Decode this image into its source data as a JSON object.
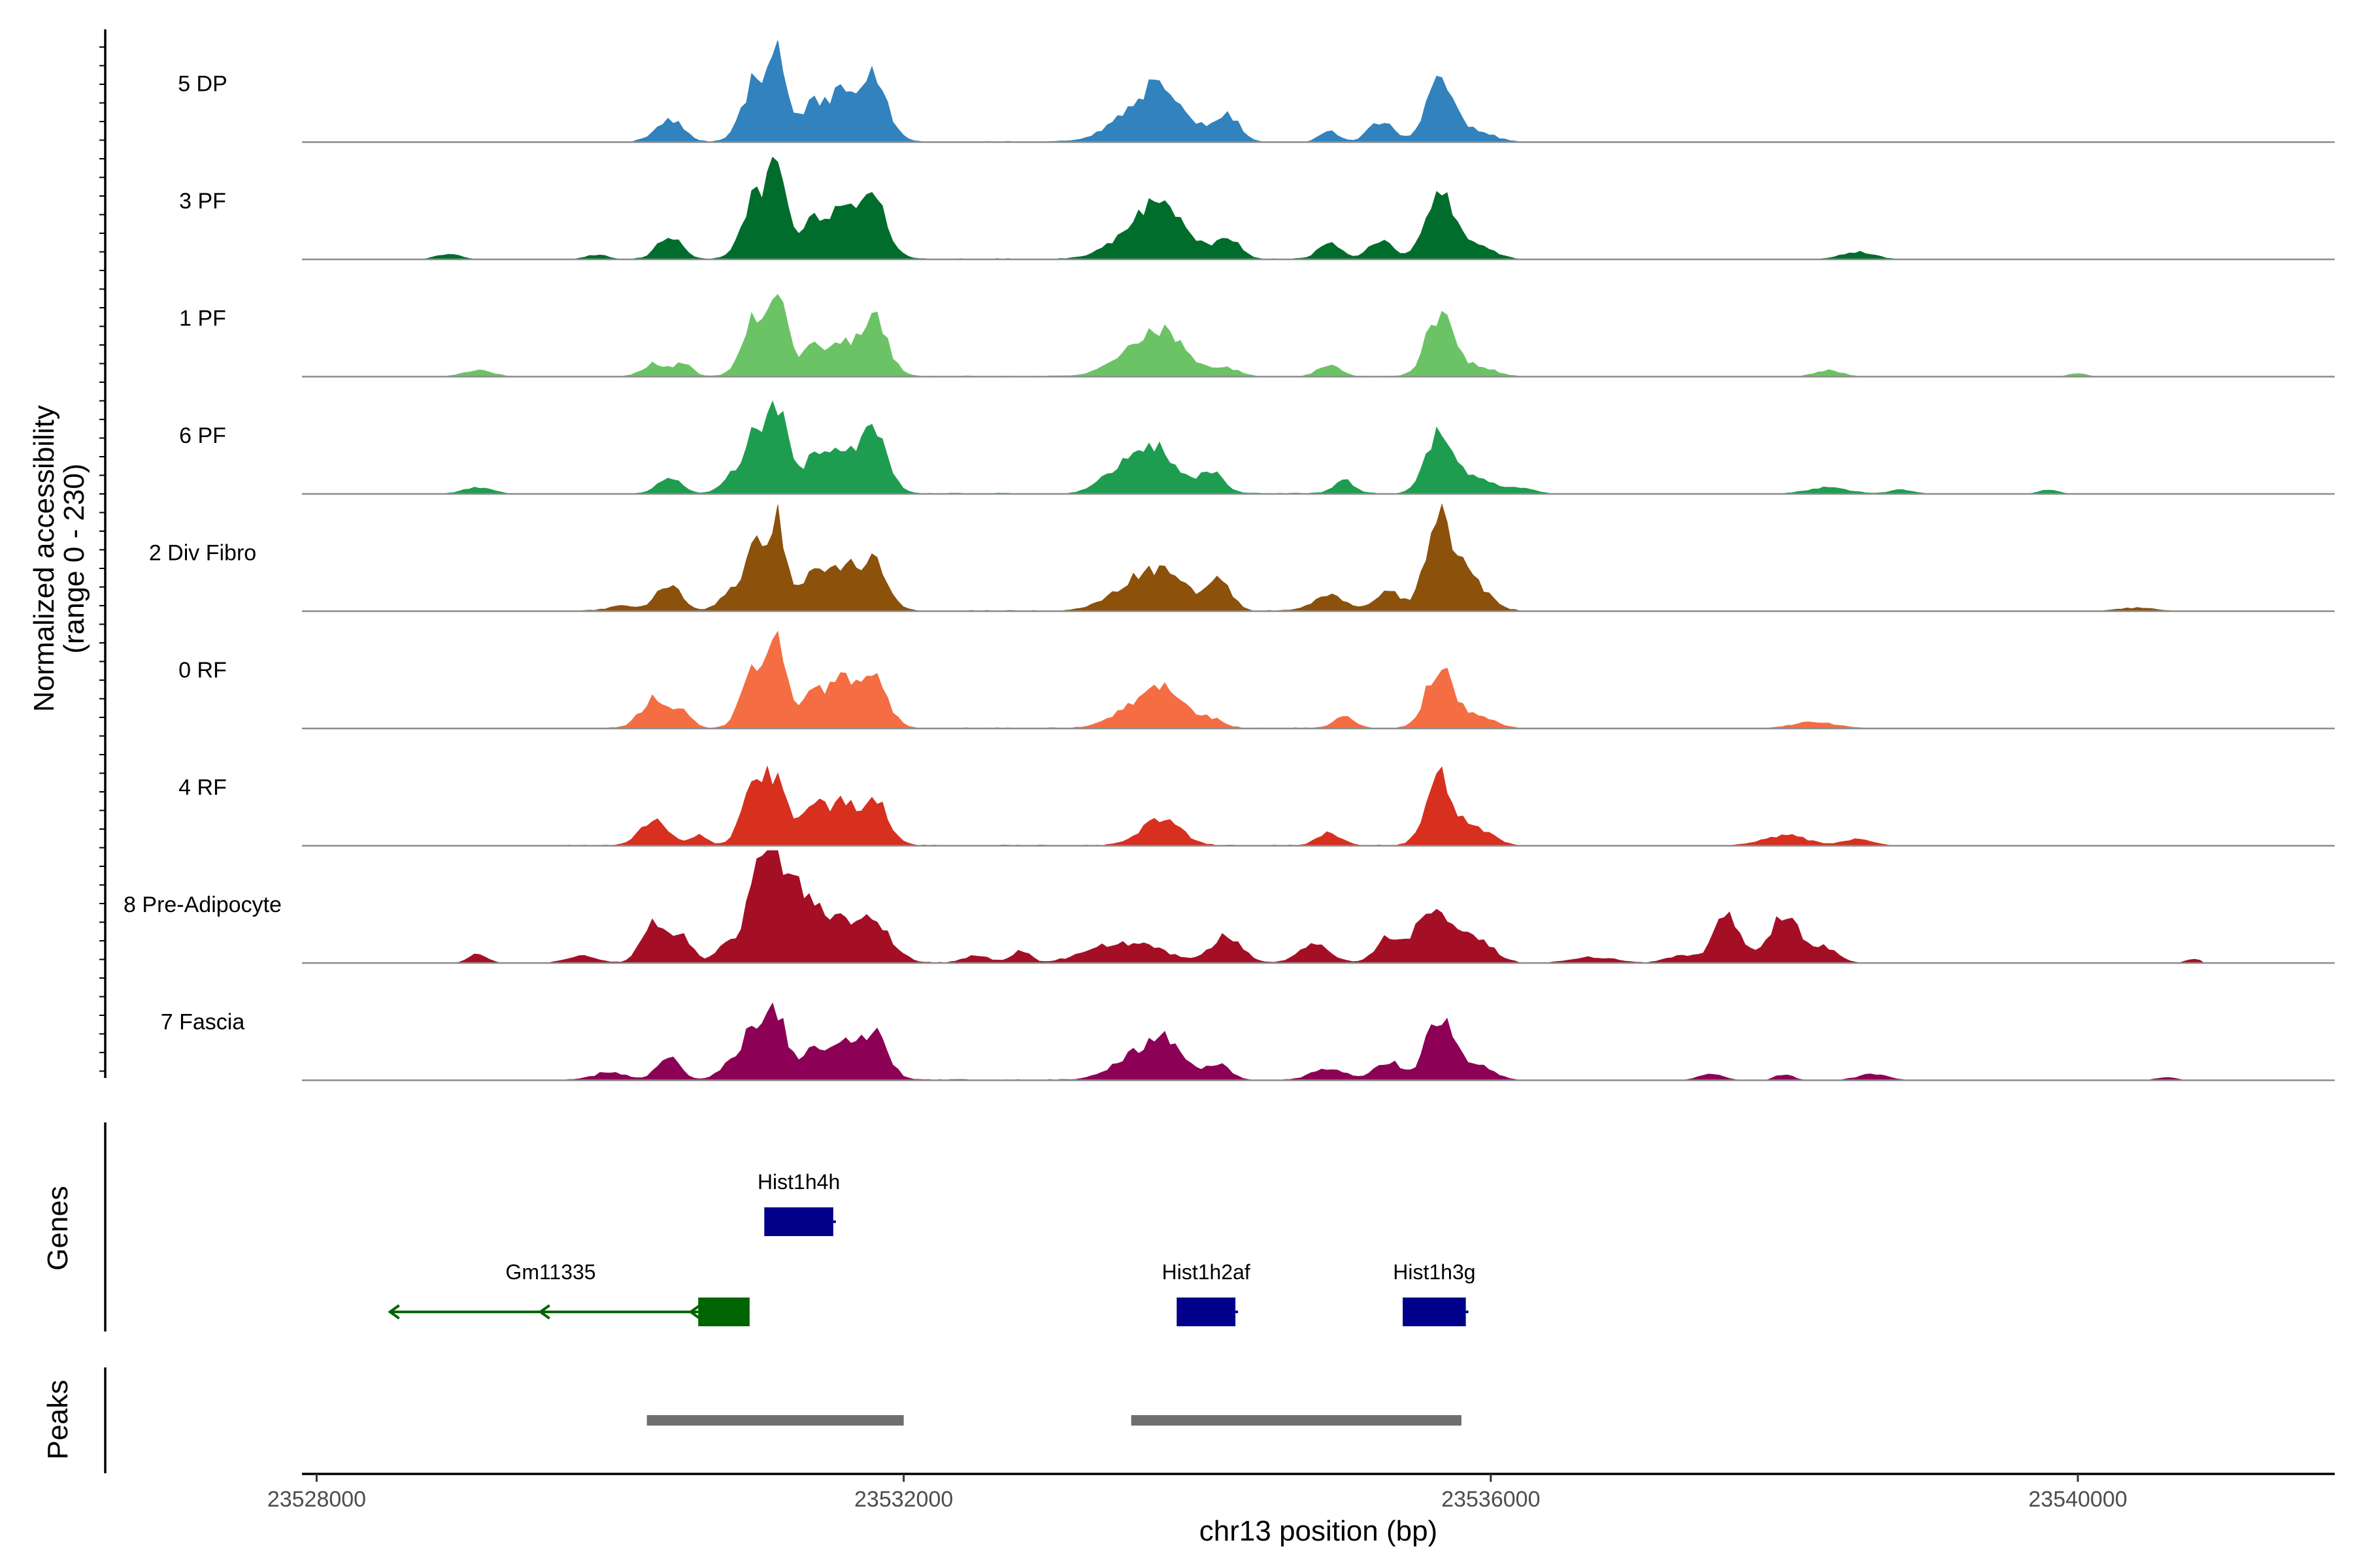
{
  "chart_data": {
    "type": "area",
    "title": "",
    "chromosome": "chr13",
    "xlabel": "chr13 position (bp)",
    "ylabel_line1": "Normalized accessibility",
    "ylabel_line2": "(range 0 - 230)",
    "y_range": [
      0,
      230
    ],
    "x_range": [
      23527900,
      23541750
    ],
    "x_ticks": [
      23528000,
      23532000,
      23536000,
      23540000
    ],
    "x_tick_labels": [
      "23528000",
      "23532000",
      "23536000",
      "23540000"
    ],
    "tracks": [
      {
        "name": "5 DP",
        "color": "#3182BD",
        "scale": 0.9,
        "peaks": [
          [
            23530400,
            0.22,
            90
          ],
          [
            23531000,
            0.62,
            90
          ],
          [
            23531150,
            0.72,
            60
          ],
          [
            23531400,
            0.38,
            100
          ],
          [
            23531600,
            0.42,
            80
          ],
          [
            23531800,
            0.62,
            90
          ],
          [
            23533600,
            0.28,
            180
          ],
          [
            23533800,
            0.38,
            150
          ],
          [
            23534200,
            0.28,
            80
          ],
          [
            23534900,
            0.1,
            60
          ],
          [
            23535250,
            0.2,
            80
          ],
          [
            23535650,
            0.62,
            90
          ],
          [
            23535900,
            0.1,
            110
          ]
        ]
      },
      {
        "name": "3 PF",
        "color": "#006D2C",
        "scale": 0.92,
        "peaks": [
          [
            23528900,
            0.05,
            80
          ],
          [
            23529900,
            0.04,
            70
          ],
          [
            23530400,
            0.22,
            80
          ],
          [
            23531000,
            0.62,
            90
          ],
          [
            23531150,
            0.72,
            60
          ],
          [
            23531400,
            0.38,
            100
          ],
          [
            23531600,
            0.4,
            80
          ],
          [
            23531800,
            0.55,
            90
          ],
          [
            23533600,
            0.26,
            180
          ],
          [
            23533800,
            0.38,
            150
          ],
          [
            23534200,
            0.22,
            80
          ],
          [
            23534900,
            0.16,
            70
          ],
          [
            23535250,
            0.18,
            80
          ],
          [
            23535650,
            0.7,
            90
          ],
          [
            23535900,
            0.12,
            110
          ],
          [
            23538500,
            0.07,
            110
          ]
        ]
      },
      {
        "name": "1 PF",
        "color": "#6CC366",
        "scale": 0.9,
        "peaks": [
          [
            23529100,
            0.06,
            100
          ],
          [
            23530300,
            0.12,
            80
          ],
          [
            23530500,
            0.12,
            60
          ],
          [
            23531000,
            0.6,
            90
          ],
          [
            23531150,
            0.66,
            60
          ],
          [
            23531400,
            0.3,
            100
          ],
          [
            23531600,
            0.24,
            80
          ],
          [
            23531800,
            0.55,
            90
          ],
          [
            23533600,
            0.22,
            180
          ],
          [
            23533800,
            0.3,
            150
          ],
          [
            23534200,
            0.08,
            80
          ],
          [
            23534900,
            0.12,
            70
          ],
          [
            23535650,
            0.6,
            90
          ],
          [
            23535900,
            0.1,
            110
          ],
          [
            23538300,
            0.06,
            90
          ],
          [
            23540000,
            0.03,
            60
          ]
        ]
      },
      {
        "name": "6 PF",
        "color": "#1E9D50",
        "scale": 0.92,
        "peaks": [
          [
            23529100,
            0.06,
            100
          ],
          [
            23530400,
            0.15,
            80
          ],
          [
            23530800,
            0.1,
            60
          ],
          [
            23531000,
            0.62,
            90
          ],
          [
            23531150,
            0.66,
            60
          ],
          [
            23531400,
            0.36,
            100
          ],
          [
            23531600,
            0.35,
            80
          ],
          [
            23531800,
            0.6,
            90
          ],
          [
            23533500,
            0.24,
            140
          ],
          [
            23533750,
            0.38,
            130
          ],
          [
            23534100,
            0.22,
            80
          ],
          [
            23535000,
            0.12,
            70
          ],
          [
            23535650,
            0.6,
            90
          ],
          [
            23535900,
            0.14,
            110
          ],
          [
            23536200,
            0.05,
            100
          ],
          [
            23538300,
            0.06,
            140
          ],
          [
            23538800,
            0.04,
            80
          ],
          [
            23539800,
            0.04,
            60
          ]
        ]
      },
      {
        "name": "2 Div Fibro",
        "color": "#8C510A",
        "scale": 0.95,
        "peaks": [
          [
            23530100,
            0.05,
            100
          ],
          [
            23530400,
            0.25,
            80
          ],
          [
            23530800,
            0.12,
            70
          ],
          [
            23531000,
            0.62,
            90
          ],
          [
            23531150,
            0.66,
            60
          ],
          [
            23531400,
            0.36,
            100
          ],
          [
            23531600,
            0.34,
            80
          ],
          [
            23531800,
            0.48,
            90
          ],
          [
            23533550,
            0.22,
            160
          ],
          [
            23533800,
            0.32,
            140
          ],
          [
            23534150,
            0.28,
            80
          ],
          [
            23534900,
            0.14,
            110
          ],
          [
            23535300,
            0.18,
            90
          ],
          [
            23535650,
            0.82,
            90
          ],
          [
            23535850,
            0.28,
            120
          ],
          [
            23540400,
            0.03,
            120
          ]
        ]
      },
      {
        "name": "0 RF",
        "color": "#F46D43",
        "scale": 0.92,
        "peaks": [
          [
            23530300,
            0.28,
            90
          ],
          [
            23530500,
            0.14,
            60
          ],
          [
            23531000,
            0.62,
            90
          ],
          [
            23531150,
            0.66,
            60
          ],
          [
            23531400,
            0.36,
            100
          ],
          [
            23531600,
            0.38,
            80
          ],
          [
            23531800,
            0.46,
            90
          ],
          [
            23533600,
            0.2,
            170
          ],
          [
            23533800,
            0.26,
            130
          ],
          [
            23534100,
            0.08,
            80
          ],
          [
            23535000,
            0.1,
            70
          ],
          [
            23535650,
            0.58,
            90
          ],
          [
            23535900,
            0.12,
            110
          ],
          [
            23538200,
            0.06,
            150
          ]
        ]
      },
      {
        "name": "4 RF",
        "color": "#D7301F",
        "scale": 0.92,
        "peaks": [
          [
            23530300,
            0.25,
            90
          ],
          [
            23530600,
            0.1,
            60
          ],
          [
            23531000,
            0.64,
            90
          ],
          [
            23531150,
            0.48,
            60
          ],
          [
            23531400,
            0.38,
            100
          ],
          [
            23531600,
            0.34,
            80
          ],
          [
            23531800,
            0.44,
            90
          ],
          [
            23533750,
            0.26,
            130
          ],
          [
            23534900,
            0.12,
            80
          ],
          [
            23535650,
            0.64,
            90
          ],
          [
            23535900,
            0.16,
            110
          ],
          [
            23538000,
            0.1,
            150
          ],
          [
            23538500,
            0.06,
            100
          ]
        ]
      },
      {
        "name": "8 Pre-Adipocyte",
        "color": "#A50F25",
        "scale": 1.0,
        "peaks": [
          [
            23529100,
            0.08,
            60
          ],
          [
            23529800,
            0.06,
            100
          ],
          [
            23530300,
            0.38,
            80
          ],
          [
            23530500,
            0.22,
            60
          ],
          [
            23530800,
            0.15,
            80
          ],
          [
            23531000,
            0.75,
            70
          ],
          [
            23531100,
            0.95,
            45
          ],
          [
            23531250,
            0.62,
            90
          ],
          [
            23531500,
            0.4,
            160
          ],
          [
            23531800,
            0.3,
            120
          ],
          [
            23532500,
            0.07,
            80
          ],
          [
            23532800,
            0.1,
            60
          ],
          [
            23533300,
            0.08,
            150
          ],
          [
            23533600,
            0.15,
            200
          ],
          [
            23534200,
            0.24,
            100
          ],
          [
            23534800,
            0.16,
            100
          ],
          [
            23535300,
            0.22,
            80
          ],
          [
            23535600,
            0.5,
            110
          ],
          [
            23535900,
            0.22,
            110
          ],
          [
            23536700,
            0.05,
            150
          ],
          [
            23537300,
            0.07,
            100
          ],
          [
            23537600,
            0.48,
            80
          ],
          [
            23538000,
            0.4,
            120
          ],
          [
            23538300,
            0.12,
            80
          ],
          [
            23540800,
            0.03,
            60
          ]
        ]
      },
      {
        "name": "7 Fascia",
        "color": "#8C0055",
        "scale": 0.88,
        "peaks": [
          [
            23530000,
            0.08,
            100
          ],
          [
            23530400,
            0.22,
            80
          ],
          [
            23530800,
            0.12,
            70
          ],
          [
            23531000,
            0.58,
            90
          ],
          [
            23531150,
            0.5,
            60
          ],
          [
            23531400,
            0.34,
            100
          ],
          [
            23531600,
            0.3,
            80
          ],
          [
            23531800,
            0.46,
            90
          ],
          [
            23533600,
            0.24,
            170
          ],
          [
            23533800,
            0.28,
            130
          ],
          [
            23534150,
            0.14,
            80
          ],
          [
            23534900,
            0.12,
            110
          ],
          [
            23535300,
            0.18,
            90
          ],
          [
            23535650,
            0.64,
            90
          ],
          [
            23535900,
            0.14,
            110
          ],
          [
            23537500,
            0.06,
            80
          ],
          [
            23538000,
            0.06,
            60
          ],
          [
            23538600,
            0.06,
            100
          ],
          [
            23540600,
            0.03,
            60
          ]
        ]
      }
    ],
    "genes_title": "Genes",
    "genes": [
      {
        "name": "Hist1h4h",
        "start": 23531050,
        "end": 23531520,
        "strand": "+",
        "color": "#00008B",
        "row": 0
      },
      {
        "name": "Gm11335",
        "start": 23528500,
        "end": 23530950,
        "strand": "-",
        "color": "#006400",
        "row": 1,
        "exon_start": 23530600,
        "exon_end": 23530950
      },
      {
        "name": "Hist1h2af",
        "start": 23533860,
        "end": 23534260,
        "strand": "+",
        "color": "#00008B",
        "row": 1
      },
      {
        "name": "Hist1h3g",
        "start": 23535400,
        "end": 23535830,
        "strand": "+",
        "color": "#00008B",
        "row": 1
      }
    ],
    "peaks_title": "Peaks",
    "peak_regions": [
      {
        "start": 23530250,
        "end": 23532000,
        "color": "#6E6E6E"
      },
      {
        "start": 23533550,
        "end": 23535800,
        "color": "#6E6E6E"
      }
    ]
  }
}
